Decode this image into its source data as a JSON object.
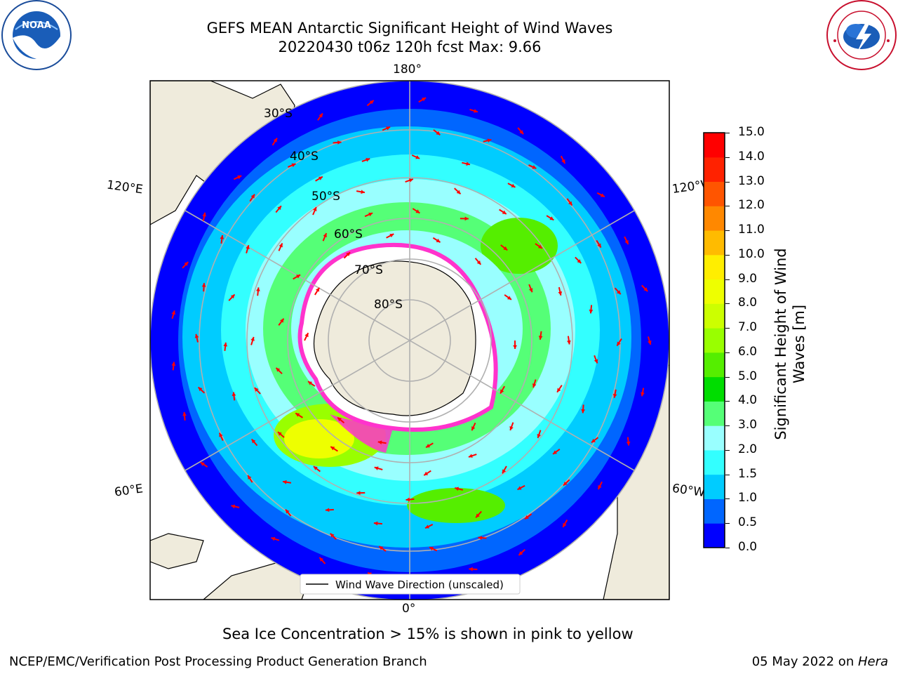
{
  "header": {
    "title_line1": "GEFS MEAN Antarctic Significant Height of Wind Waves",
    "title_line2": "20220430 t06z 120h fcst   Max: 9.66"
  },
  "logos": {
    "left": "NOAA",
    "left_ring_text": "NATIONAL OCEANIC AND ATMOSPHERIC ADMINISTRATION · U.S. DEPARTMENT OF COMMERCE",
    "right_ring_text": "NATIONAL WEATHER SERVICE"
  },
  "map": {
    "lon_labels": {
      "top": "180°",
      "bottom": "0°",
      "upper_left": "120°E",
      "upper_right": "120°W",
      "lower_left": "60°E",
      "lower_right": "60°W"
    },
    "lat_labels": [
      "30°S",
      "40°S",
      "50°S",
      "60°S",
      "70°S",
      "80°S"
    ],
    "legend_label": "Wind Wave Direction (unscaled)",
    "colors": {
      "land": "#efebdc",
      "ice_pink": "#ff33cc",
      "arrow": "#ff0000",
      "grid": "#b0b0b0"
    }
  },
  "colorbar": {
    "title": "Significant Height of Wind Waves [m]",
    "title_line1": "Significant Height of Wind",
    "title_line2": "Waves [m]",
    "ticks": [
      "0.0",
      "0.5",
      "1.0",
      "1.5",
      "2.0",
      "3.0",
      "4.0",
      "5.0",
      "6.0",
      "7.0",
      "8.0",
      "9.0",
      "10.0",
      "11.0",
      "12.0",
      "13.0",
      "14.0",
      "15.0"
    ],
    "colors": [
      "#0000ff",
      "#0066ff",
      "#00ccff",
      "#33ffff",
      "#99ffff",
      "#55ff77",
      "#00dd00",
      "#55ee00",
      "#99ff00",
      "#ccff00",
      "#eeff00",
      "#ffee00",
      "#ffbb00",
      "#ff8800",
      "#ff5500",
      "#ff2200",
      "#ff0000"
    ]
  },
  "captions": {
    "sea_ice": "Sea Ice Concentration > 15% is shown in pink to yellow",
    "credit": "NCEP/EMC/Verification Post Processing Product Generation Branch",
    "date": "05 May 2022 on ",
    "host": "Hera"
  }
}
